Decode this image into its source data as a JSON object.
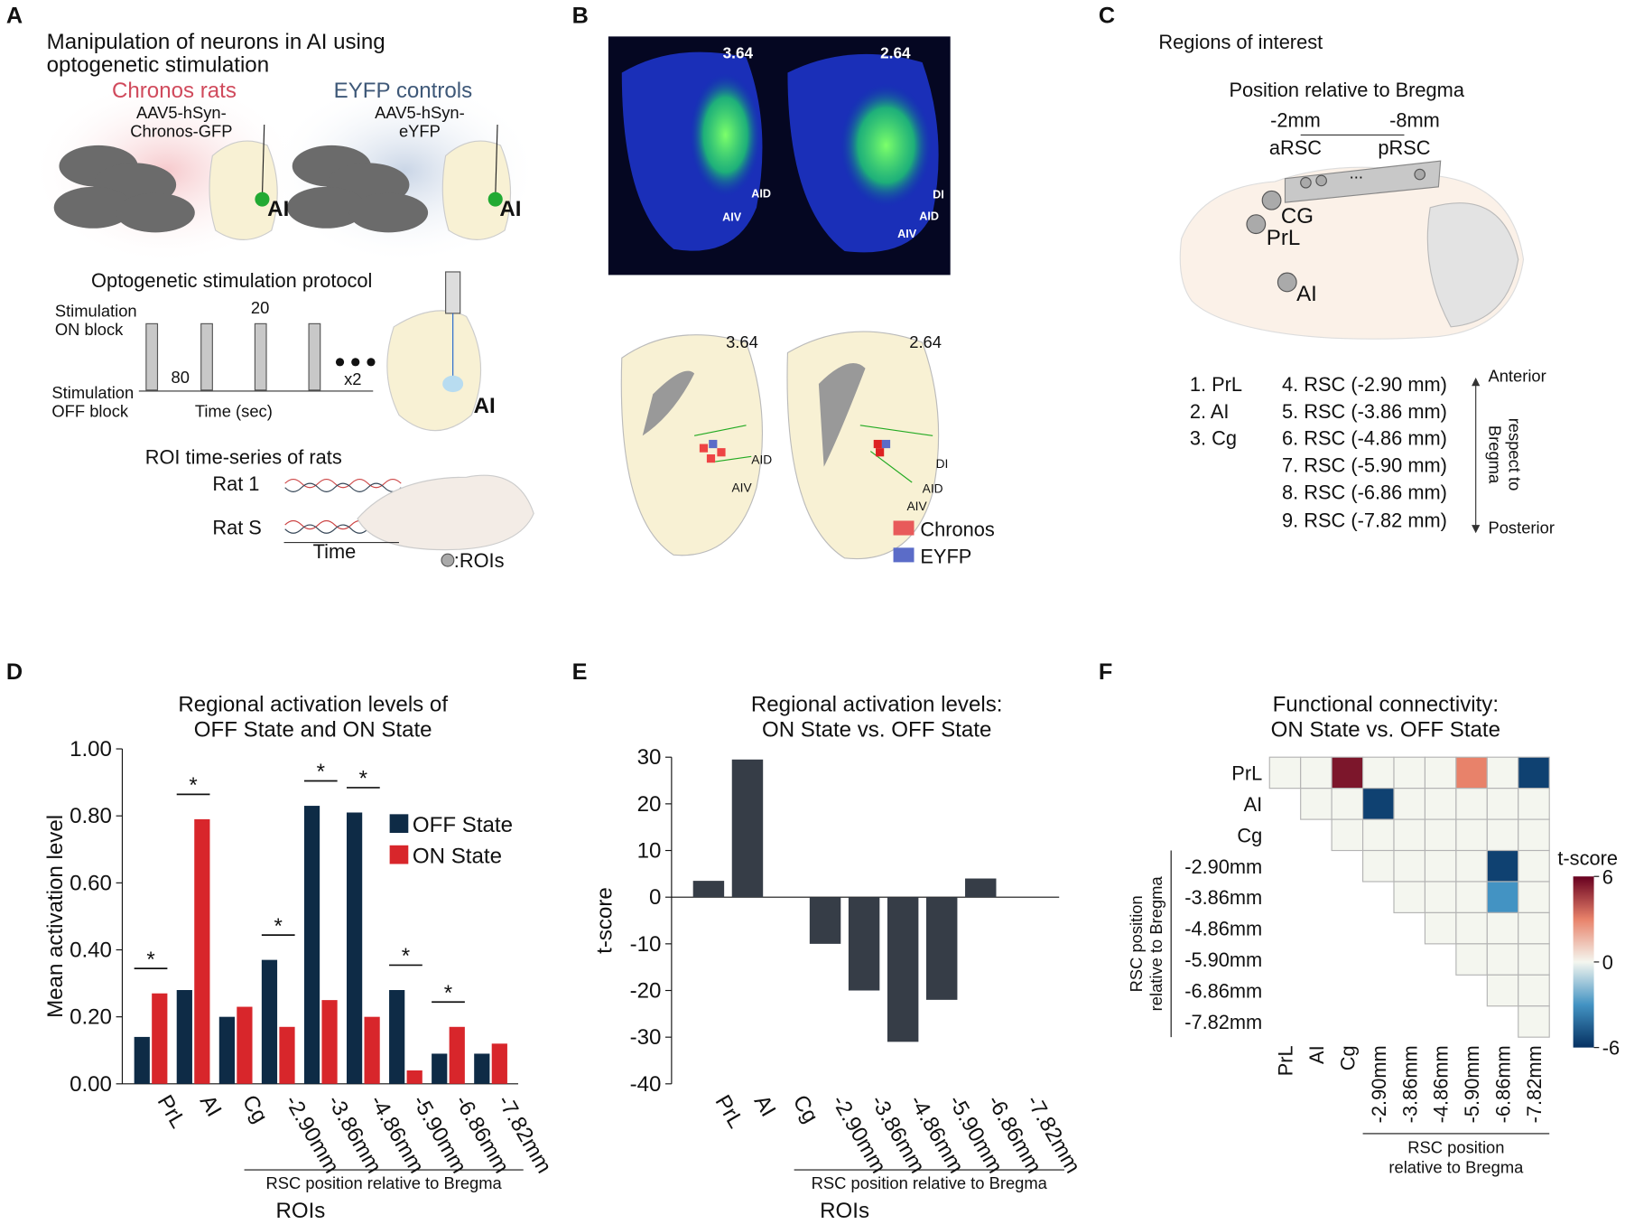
{
  "panel_a": {
    "letter": "A",
    "title": [
      "Manipulation of neurons in AI using",
      "optogenetic stimulation"
    ],
    "chronos": "Chronos rats",
    "chronos_virus": [
      "AAV5-hSyn-",
      "Chronos-GFP"
    ],
    "eyfp": "EYFP controls",
    "eyfp_virus": [
      "AAV5-hSyn-",
      "eYFP"
    ],
    "region": "AI",
    "protocol_title": "Optogenetic stimulation protocol",
    "on_block": [
      "Stimulation",
      "ON block"
    ],
    "off_block": [
      "Stimulation",
      "OFF block"
    ],
    "on_duration": "20",
    "off_duration": "80",
    "repeat": "x2",
    "time_axis": "Time (sec)",
    "roi_title": "ROI time-series of rats",
    "rat_first": "Rat 1",
    "rat_last": "Rat S",
    "time": "Time",
    "roi_legend": ":ROIs"
  },
  "panel_b": {
    "letter": "B",
    "slices": [
      "3.64",
      "2.64"
    ],
    "labels_a": [
      "AID",
      "AIV"
    ],
    "labels_b": [
      "DI",
      "AID",
      "AIV"
    ],
    "legend": [
      "Chronos",
      "EYFP"
    ]
  },
  "panel_c": {
    "letter": "C",
    "title": "Regions of interest",
    "subtitle": "Position relative to Bregma",
    "range": [
      "-2mm",
      "-8mm"
    ],
    "ends": [
      "aRSC",
      "pRSC"
    ],
    "ellipsis": "...",
    "regions": [
      "CG",
      "PrL",
      "AI"
    ],
    "list": [
      "1. PrL",
      "2. AI",
      "3. Cg",
      "4. RSC (-2.90 mm)",
      "5. RSC (-3.86 mm)",
      "6. RSC (-4.86 mm)",
      "7. RSC (-5.90 mm)",
      "8. RSC (-6.86 mm)",
      "9. RSC (-7.82 mm)"
    ],
    "anterior": "Anterior",
    "posterior": "Posterior",
    "axis_label": [
      "respect to",
      "Bregma"
    ]
  },
  "chart_data": [
    {
      "type": "bar",
      "letter": "D",
      "title": [
        "Regional activation levels of",
        "OFF State and ON State"
      ],
      "categories": [
        "PrL",
        "AI",
        "Cg",
        "-2.90mm",
        "-3.86mm",
        "-4.86mm",
        "-5.90mm",
        "-6.86mm",
        "-7.82mm"
      ],
      "series": [
        {
          "name": "OFF State",
          "color": "#0e2b46",
          "values": [
            0.14,
            0.28,
            0.2,
            0.37,
            0.83,
            0.81,
            0.28,
            0.09,
            0.09
          ]
        },
        {
          "name": "ON State",
          "color": "#d8262b",
          "values": [
            0.27,
            0.79,
            0.23,
            0.17,
            0.25,
            0.2,
            0.04,
            0.17,
            0.12
          ]
        }
      ],
      "significance": [
        "*",
        "*",
        null,
        "*",
        "*",
        "*",
        "*",
        "*",
        null
      ],
      "ylim": [
        0,
        1
      ],
      "yticks": [
        {
          "value": 0,
          "label": "0.00"
        },
        {
          "value": 0.2,
          "label": "0.20"
        },
        {
          "value": 0.4,
          "label": "0.40"
        },
        {
          "value": 0.6,
          "label": "0.60"
        },
        {
          "value": 0.8,
          "label": "0.80"
        },
        {
          "value": 1,
          "label": "1.00"
        }
      ],
      "ylabel": "Mean activation level",
      "xlabel": "ROIs",
      "group_label": "RSC position relative to Bregma"
    },
    {
      "type": "bar",
      "letter": "E",
      "title": [
        "Regional activation levels:",
        "ON State vs. OFF State"
      ],
      "categories": [
        "PrL",
        "AI",
        "Cg",
        "-2.90mm",
        "-3.86mm",
        "-4.86mm",
        "-5.90mm",
        "-6.86mm",
        "-7.82mm"
      ],
      "values": [
        3.5,
        29.5,
        0,
        -10,
        -20,
        -31,
        -22,
        4,
        0
      ],
      "color": "#363d47",
      "ylim": [
        -40,
        30
      ],
      "yticks": [
        -40,
        -30,
        -20,
        -10,
        0,
        10,
        20,
        30
      ],
      "ylabel": "t-score",
      "xlabel": "ROIs",
      "group_label": "RSC position relative to Bregma"
    },
    {
      "type": "heatmap",
      "letter": "F",
      "title": [
        "Functional connectivity:",
        "ON State vs. OFF State"
      ],
      "rows": [
        "PrL",
        "AI",
        "Cg",
        "-2.90mm",
        "-3.86mm",
        "-4.86mm",
        "-5.90mm",
        "-6.86mm",
        "-7.82mm"
      ],
      "columns": [
        "PrL",
        "AI",
        "Cg",
        "-2.90mm",
        "-3.86mm",
        "-4.86mm",
        "-5.90mm",
        "-6.86mm",
        "-7.82mm"
      ],
      "matrix": [
        [
          0,
          0,
          5.5,
          0,
          0,
          0,
          3,
          0,
          -5.5
        ],
        [
          null,
          0,
          0,
          -5.5,
          0,
          0,
          0,
          0,
          0
        ],
        [
          null,
          null,
          0,
          0,
          0,
          0,
          0,
          0,
          0
        ],
        [
          null,
          null,
          null,
          0,
          0,
          0,
          0,
          -5.5,
          0
        ],
        [
          null,
          null,
          null,
          null,
          0,
          0,
          0,
          -3,
          0
        ],
        [
          null,
          null,
          null,
          null,
          null,
          0,
          0,
          0,
          0
        ],
        [
          null,
          null,
          null,
          null,
          null,
          null,
          0,
          0,
          0
        ],
        [
          null,
          null,
          null,
          null,
          null,
          null,
          null,
          0,
          0
        ],
        [
          null,
          null,
          null,
          null,
          null,
          null,
          null,
          null,
          0
        ]
      ],
      "clim": [
        -6,
        6
      ],
      "cticks": [
        -6,
        0,
        6
      ],
      "colorbar_label": "t-score",
      "group_label": [
        "RSC position",
        "relative to Bregma"
      ]
    }
  ]
}
